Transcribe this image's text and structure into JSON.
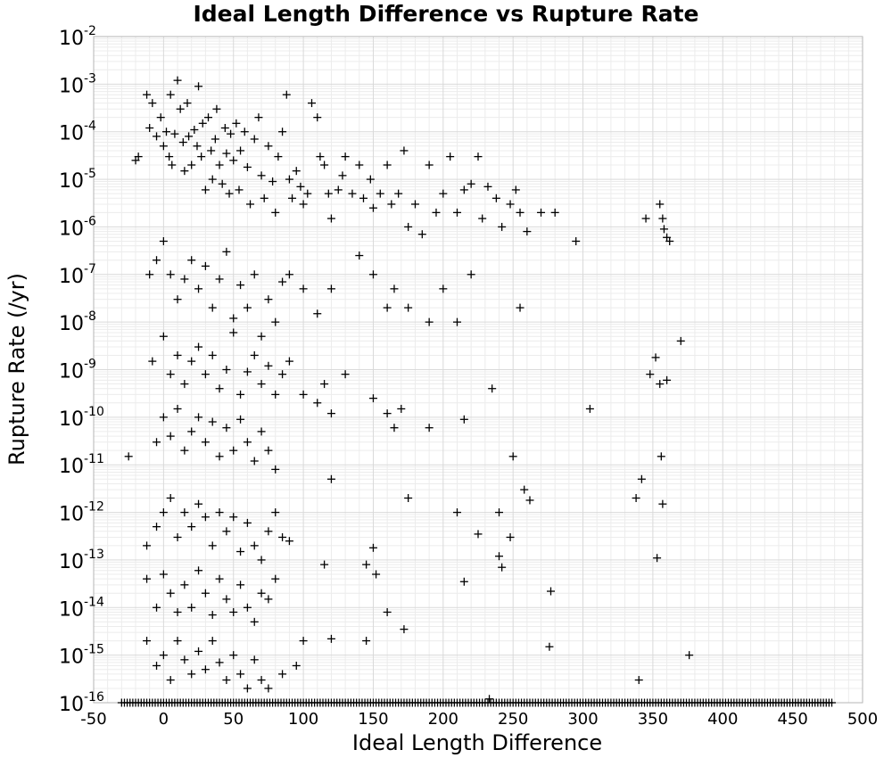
{
  "chart_data": {
    "type": "scatter",
    "title": "Ideal Length Difference vs Rupture Rate",
    "xlabel": "Ideal Length Difference",
    "ylabel": "Rupture Rate (/yr)",
    "xlim": [
      -50,
      500
    ],
    "ylim": [
      1e-16,
      0.01
    ],
    "yscale": "log",
    "marker": "plus",
    "grid": true,
    "legend": "none",
    "x_ticks": [
      -50,
      0,
      50,
      100,
      150,
      200,
      250,
      300,
      350,
      400,
      450,
      500
    ],
    "x_tick_labels": [
      "-50",
      "0",
      "50",
      "100",
      "150",
      "200",
      "250",
      "300",
      "350",
      "400",
      "450",
      "500"
    ],
    "y_ticks": [
      {
        "base": "10",
        "exp": "-2"
      },
      {
        "base": "10",
        "exp": "-3"
      },
      {
        "base": "10",
        "exp": "-4"
      },
      {
        "base": "10",
        "exp": "-5"
      },
      {
        "base": "10",
        "exp": "-6"
      },
      {
        "base": "10",
        "exp": "-7"
      },
      {
        "base": "10",
        "exp": "-8"
      },
      {
        "base": "10",
        "exp": "-9"
      },
      {
        "base": "10",
        "exp": "-10"
      },
      {
        "base": "10",
        "exp": "-11"
      },
      {
        "base": "10",
        "exp": "-12"
      },
      {
        "base": "10",
        "exp": "-13"
      },
      {
        "base": "10",
        "exp": "-14"
      },
      {
        "base": "10",
        "exp": "-15"
      },
      {
        "base": "10",
        "exp": "-16"
      }
    ],
    "points": [
      [
        -20,
        2.5e-05
      ],
      [
        -18,
        3e-05
      ],
      [
        -12,
        0.0006
      ],
      [
        -10,
        0.00012
      ],
      [
        -8,
        0.0004
      ],
      [
        -5,
        8e-05
      ],
      [
        -2,
        0.0002
      ],
      [
        0,
        5e-05
      ],
      [
        2,
        0.0001
      ],
      [
        4,
        3e-05
      ],
      [
        5,
        0.0006
      ],
      [
        6,
        2e-05
      ],
      [
        8,
        9e-05
      ],
      [
        10,
        0.0012
      ],
      [
        12,
        0.0003
      ],
      [
        14,
        6e-05
      ],
      [
        15,
        1.5e-05
      ],
      [
        17,
        0.0004
      ],
      [
        18,
        8e-05
      ],
      [
        20,
        2e-05
      ],
      [
        22,
        0.00011
      ],
      [
        24,
        5e-05
      ],
      [
        25,
        0.0009
      ],
      [
        27,
        3e-05
      ],
      [
        28,
        0.00015
      ],
      [
        30,
        6e-06
      ],
      [
        32,
        0.0002
      ],
      [
        34,
        4e-05
      ],
      [
        35,
        1e-05
      ],
      [
        37,
        7e-05
      ],
      [
        38,
        0.0003
      ],
      [
        40,
        2e-05
      ],
      [
        42,
        8e-06
      ],
      [
        44,
        0.00012
      ],
      [
        45,
        3.5e-05
      ],
      [
        47,
        5e-06
      ],
      [
        48,
        9e-05
      ],
      [
        50,
        2.5e-05
      ],
      [
        52,
        0.00015
      ],
      [
        54,
        6e-06
      ],
      [
        55,
        4e-05
      ],
      [
        58,
        0.0001
      ],
      [
        60,
        1.8e-05
      ],
      [
        62,
        3e-06
      ],
      [
        65,
        7e-05
      ],
      [
        68,
        0.0002
      ],
      [
        70,
        1.2e-05
      ],
      [
        72,
        4e-06
      ],
      [
        75,
        5e-05
      ],
      [
        78,
        9e-06
      ],
      [
        80,
        2e-06
      ],
      [
        82,
        3e-05
      ],
      [
        85,
        0.0001
      ],
      [
        88,
        0.0006
      ],
      [
        90,
        1e-05
      ],
      [
        92,
        4e-06
      ],
      [
        95,
        1.5e-05
      ],
      [
        98,
        7e-06
      ],
      [
        100,
        3e-06
      ],
      [
        103,
        5e-06
      ],
      [
        106,
        0.0004
      ],
      [
        110,
        0.0002
      ],
      [
        112,
        3e-05
      ],
      [
        115,
        2e-05
      ],
      [
        118,
        5e-06
      ],
      [
        120,
        1.5e-06
      ],
      [
        125,
        6e-06
      ],
      [
        128,
        1.2e-05
      ],
      [
        130,
        3e-05
      ],
      [
        135,
        5e-06
      ],
      [
        140,
        2e-05
      ],
      [
        143,
        4e-06
      ],
      [
        148,
        1e-05
      ],
      [
        150,
        2.5e-06
      ],
      [
        155,
        5e-06
      ],
      [
        160,
        2e-05
      ],
      [
        163,
        3e-06
      ],
      [
        168,
        5e-06
      ],
      [
        172,
        4e-05
      ],
      [
        175,
        1e-06
      ],
      [
        180,
        3e-06
      ],
      [
        185,
        7e-07
      ],
      [
        190,
        2e-05
      ],
      [
        195,
        2e-06
      ],
      [
        200,
        5e-06
      ],
      [
        205,
        3e-05
      ],
      [
        210,
        2e-06
      ],
      [
        215,
        6e-06
      ],
      [
        220,
        8e-06
      ],
      [
        225,
        3e-05
      ],
      [
        228,
        1.5e-06
      ],
      [
        232,
        7e-06
      ],
      [
        238,
        4e-06
      ],
      [
        242,
        1e-06
      ],
      [
        248,
        3e-06
      ],
      [
        252,
        6e-06
      ],
      [
        255,
        2e-06
      ],
      [
        260,
        8e-07
      ],
      [
        270,
        2e-06
      ],
      [
        280,
        2e-06
      ],
      [
        295,
        5e-07
      ],
      [
        345,
        1.5e-06
      ],
      [
        355,
        3e-06
      ],
      [
        357,
        1.5e-06
      ],
      [
        358,
        9e-07
      ],
      [
        360,
        6e-07
      ],
      [
        362,
        5e-07
      ],
      [
        -10,
        1e-07
      ],
      [
        -5,
        2e-07
      ],
      [
        0,
        5e-07
      ],
      [
        5,
        1e-07
      ],
      [
        10,
        3e-08
      ],
      [
        15,
        8e-08
      ],
      [
        20,
        2e-07
      ],
      [
        25,
        5e-08
      ],
      [
        30,
        1.5e-07
      ],
      [
        35,
        2e-08
      ],
      [
        40,
        8e-08
      ],
      [
        45,
        3e-07
      ],
      [
        50,
        1.2e-08
      ],
      [
        55,
        6e-08
      ],
      [
        60,
        2e-08
      ],
      [
        65,
        1e-07
      ],
      [
        70,
        5e-09
      ],
      [
        75,
        3e-08
      ],
      [
        80,
        1e-08
      ],
      [
        85,
        7e-08
      ],
      [
        90,
        1e-07
      ],
      [
        100,
        5e-08
      ],
      [
        110,
        1.5e-08
      ],
      [
        120,
        5e-08
      ],
      [
        140,
        2.5e-07
      ],
      [
        150,
        1e-07
      ],
      [
        160,
        2e-08
      ],
      [
        165,
        5e-08
      ],
      [
        175,
        2e-08
      ],
      [
        190,
        1e-08
      ],
      [
        200,
        5e-08
      ],
      [
        210,
        1e-08
      ],
      [
        220,
        1e-07
      ],
      [
        255,
        2e-08
      ],
      [
        370,
        4e-09
      ],
      [
        -8,
        1.5e-09
      ],
      [
        0,
        5e-09
      ],
      [
        5,
        8e-10
      ],
      [
        10,
        2e-09
      ],
      [
        15,
        5e-10
      ],
      [
        20,
        1.5e-09
      ],
      [
        25,
        3e-09
      ],
      [
        30,
        8e-10
      ],
      [
        35,
        2e-09
      ],
      [
        40,
        4e-10
      ],
      [
        45,
        1e-09
      ],
      [
        50,
        6e-09
      ],
      [
        55,
        3e-10
      ],
      [
        60,
        9e-10
      ],
      [
        65,
        2e-09
      ],
      [
        70,
        5e-10
      ],
      [
        75,
        1.2e-09
      ],
      [
        80,
        3e-10
      ],
      [
        85,
        8e-10
      ],
      [
        90,
        1.5e-09
      ],
      [
        100,
        3e-10
      ],
      [
        110,
        2e-10
      ],
      [
        115,
        5e-10
      ],
      [
        120,
        1.2e-10
      ],
      [
        130,
        8e-10
      ],
      [
        150,
        2.5e-10
      ],
      [
        160,
        1.2e-10
      ],
      [
        165,
        6e-11
      ],
      [
        170,
        1.5e-10
      ],
      [
        190,
        6e-11
      ],
      [
        215,
        9e-11
      ],
      [
        235,
        4e-10
      ],
      [
        305,
        1.5e-10
      ],
      [
        348,
        8e-10
      ],
      [
        352,
        1.8e-09
      ],
      [
        355,
        5e-10
      ],
      [
        360,
        6e-10
      ],
      [
        -25,
        1.5e-11
      ],
      [
        -5,
        3e-11
      ],
      [
        0,
        1e-10
      ],
      [
        5,
        4e-11
      ],
      [
        10,
        1.5e-10
      ],
      [
        15,
        2e-11
      ],
      [
        20,
        5e-11
      ],
      [
        25,
        1e-10
      ],
      [
        30,
        3e-11
      ],
      [
        35,
        8e-11
      ],
      [
        40,
        1.5e-11
      ],
      [
        45,
        6e-11
      ],
      [
        50,
        2e-11
      ],
      [
        55,
        9e-11
      ],
      [
        60,
        3e-11
      ],
      [
        65,
        1.2e-11
      ],
      [
        70,
        5e-11
      ],
      [
        75,
        2e-11
      ],
      [
        80,
        8e-12
      ],
      [
        120,
        5e-12
      ],
      [
        175,
        2e-12
      ],
      [
        210,
        1e-12
      ],
      [
        240,
        1e-12
      ],
      [
        250,
        1.5e-11
      ],
      [
        258,
        3e-12
      ],
      [
        262,
        1.8e-12
      ],
      [
        338,
        2e-12
      ],
      [
        342,
        5e-12
      ],
      [
        356,
        1.5e-11
      ],
      [
        357,
        1.5e-12
      ],
      [
        -12,
        2e-13
      ],
      [
        -5,
        5e-13
      ],
      [
        0,
        1e-12
      ],
      [
        5,
        2e-12
      ],
      [
        10,
        3e-13
      ],
      [
        15,
        1e-12
      ],
      [
        20,
        5e-13
      ],
      [
        25,
        1.5e-12
      ],
      [
        30,
        8e-13
      ],
      [
        35,
        2e-13
      ],
      [
        40,
        1e-12
      ],
      [
        45,
        4e-13
      ],
      [
        50,
        8e-13
      ],
      [
        55,
        1.5e-13
      ],
      [
        60,
        6e-13
      ],
      [
        65,
        2e-13
      ],
      [
        70,
        1e-13
      ],
      [
        75,
        4e-13
      ],
      [
        80,
        1e-12
      ],
      [
        85,
        3e-13
      ],
      [
        90,
        2.5e-13
      ],
      [
        115,
        8e-14
      ],
      [
        145,
        8e-14
      ],
      [
        150,
        1.8e-13
      ],
      [
        152,
        5e-14
      ],
      [
        215,
        3.5e-14
      ],
      [
        225,
        3.5e-13
      ],
      [
        240,
        1.2e-13
      ],
      [
        242,
        7e-14
      ],
      [
        248,
        3e-13
      ],
      [
        277,
        2.2e-14
      ],
      [
        353,
        1.1e-13
      ],
      [
        -12,
        4e-14
      ],
      [
        -5,
        1e-14
      ],
      [
        0,
        5e-14
      ],
      [
        5,
        2e-14
      ],
      [
        10,
        8e-15
      ],
      [
        15,
        3e-14
      ],
      [
        20,
        1e-14
      ],
      [
        25,
        6e-14
      ],
      [
        30,
        2e-14
      ],
      [
        35,
        7e-15
      ],
      [
        40,
        4e-14
      ],
      [
        45,
        1.5e-14
      ],
      [
        50,
        8e-15
      ],
      [
        55,
        3e-14
      ],
      [
        60,
        1e-14
      ],
      [
        65,
        5e-15
      ],
      [
        70,
        2e-14
      ],
      [
        75,
        1.5e-14
      ],
      [
        80,
        4e-14
      ],
      [
        160,
        8e-15
      ],
      [
        172,
        3.5e-15
      ],
      [
        -12,
        2e-15
      ],
      [
        -5,
        6e-16
      ],
      [
        0,
        1e-15
      ],
      [
        5,
        3e-16
      ],
      [
        10,
        2e-15
      ],
      [
        15,
        8e-16
      ],
      [
        20,
        4e-16
      ],
      [
        25,
        1.2e-15
      ],
      [
        30,
        5e-16
      ],
      [
        35,
        2e-15
      ],
      [
        40,
        7e-16
      ],
      [
        45,
        3e-16
      ],
      [
        50,
        1e-15
      ],
      [
        55,
        4e-16
      ],
      [
        60,
        2e-16
      ],
      [
        65,
        8e-16
      ],
      [
        70,
        3e-16
      ],
      [
        75,
        2e-16
      ],
      [
        85,
        4e-16
      ],
      [
        95,
        6e-16
      ],
      [
        100,
        2e-15
      ],
      [
        120,
        2.2e-15
      ],
      [
        145,
        2e-15
      ],
      [
        233,
        1.2e-16
      ],
      [
        276,
        1.5e-15
      ],
      [
        340,
        3e-16
      ],
      [
        376,
        1e-15
      ]
    ],
    "baseline_points": {
      "y": 1e-16,
      "x_start": -30,
      "x_end": 478,
      "x_step": 2
    }
  }
}
